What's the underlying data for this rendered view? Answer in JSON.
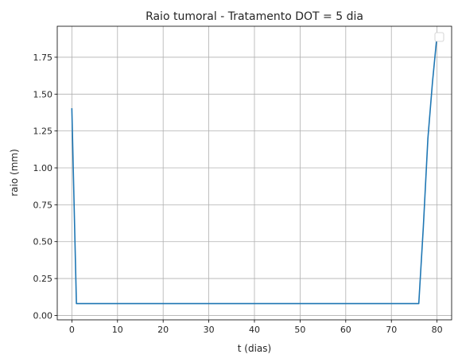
{
  "chart_data": {
    "type": "line",
    "title": "Raio tumoral - Tratamento DOT = 5 dia",
    "xlabel": "t (dias)",
    "ylabel": "raio (mm)",
    "xlim": [
      -3.2,
      83.2
    ],
    "ylim": [
      -0.03,
      1.96
    ],
    "x_ticks": [
      0,
      10,
      20,
      30,
      40,
      50,
      60,
      70,
      80
    ],
    "y_ticks": [
      0.0,
      0.25,
      0.5,
      0.75,
      1.0,
      1.25,
      1.5,
      1.75
    ],
    "y_tick_labels": [
      "0.00",
      "0.25",
      "0.50",
      "0.75",
      "1.00",
      "1.25",
      "1.50",
      "1.75"
    ],
    "grid": true,
    "legend": "top-right",
    "series": [
      {
        "color": "#1f77b4",
        "x": [
          0,
          1,
          76,
          77,
          78,
          79,
          80
        ],
        "y": [
          1.4,
          0.08,
          0.08,
          0.6,
          1.2,
          1.58,
          1.9
        ]
      }
    ]
  }
}
